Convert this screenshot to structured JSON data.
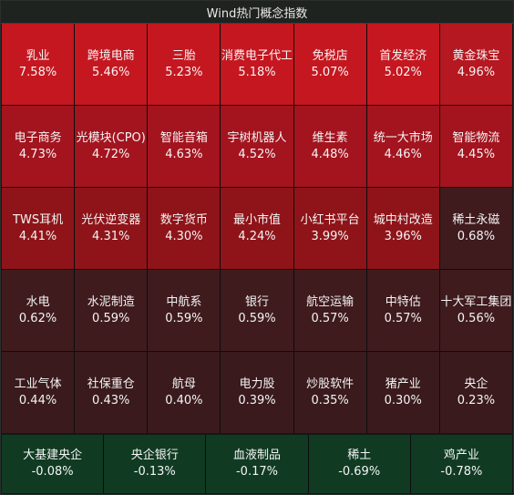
{
  "title": "Wind热门概念指数",
  "colors": {
    "strong_red": "#c51720",
    "mid_red": "#b51820",
    "red": "#a3141f",
    "deep_red": "#8e1419",
    "dark_red": "#3f1b1e",
    "darker_red": "#3a1a1d",
    "green": "#103b22"
  },
  "rows": [
    [
      {
        "name": "乳业",
        "value": "7.58%",
        "tone": "strong_red"
      },
      {
        "name": "跨境电商",
        "value": "5.46%",
        "tone": "strong_red"
      },
      {
        "name": "三胎",
        "value": "5.23%",
        "tone": "strong_red"
      },
      {
        "name": "消费电子代工",
        "value": "5.18%",
        "tone": "strong_red"
      },
      {
        "name": "免税店",
        "value": "5.07%",
        "tone": "strong_red"
      },
      {
        "name": "首发经济",
        "value": "5.02%",
        "tone": "strong_red"
      },
      {
        "name": "黄金珠宝",
        "value": "4.96%",
        "tone": "mid_red"
      }
    ],
    [
      {
        "name": "电子商务",
        "value": "4.73%",
        "tone": "red"
      },
      {
        "name": "光模块(CPO)",
        "value": "4.72%",
        "tone": "red"
      },
      {
        "name": "智能音箱",
        "value": "4.63%",
        "tone": "red"
      },
      {
        "name": "宇树机器人",
        "value": "4.52%",
        "tone": "red"
      },
      {
        "name": "维生素",
        "value": "4.48%",
        "tone": "red"
      },
      {
        "name": "统一大市场",
        "value": "4.46%",
        "tone": "red"
      },
      {
        "name": "智能物流",
        "value": "4.45%",
        "tone": "red"
      }
    ],
    [
      {
        "name": "TWS耳机",
        "value": "4.41%",
        "tone": "deep_red"
      },
      {
        "name": "光伏逆变器",
        "value": "4.31%",
        "tone": "deep_red"
      },
      {
        "name": "数字货币",
        "value": "4.30%",
        "tone": "deep_red"
      },
      {
        "name": "最小市值",
        "value": "4.24%",
        "tone": "deep_red"
      },
      {
        "name": "小红书平台",
        "value": "3.99%",
        "tone": "deep_red"
      },
      {
        "name": "城中村改造",
        "value": "3.96%",
        "tone": "deep_red"
      },
      {
        "name": "稀土永磁",
        "value": "0.68%",
        "tone": "dark_red"
      }
    ],
    [
      {
        "name": "水电",
        "value": "0.62%",
        "tone": "dark_red"
      },
      {
        "name": "水泥制造",
        "value": "0.59%",
        "tone": "dark_red"
      },
      {
        "name": "中航系",
        "value": "0.59%",
        "tone": "dark_red"
      },
      {
        "name": "银行",
        "value": "0.59%",
        "tone": "dark_red"
      },
      {
        "name": "航空运输",
        "value": "0.57%",
        "tone": "dark_red"
      },
      {
        "name": "中特估",
        "value": "0.57%",
        "tone": "dark_red"
      },
      {
        "name": "十大军工集团",
        "value": "0.56%",
        "tone": "dark_red"
      }
    ],
    [
      {
        "name": "工业气体",
        "value": "0.44%",
        "tone": "darker_red"
      },
      {
        "name": "社保重仓",
        "value": "0.43%",
        "tone": "darker_red"
      },
      {
        "name": "航母",
        "value": "0.40%",
        "tone": "darker_red"
      },
      {
        "name": "电力股",
        "value": "0.39%",
        "tone": "darker_red"
      },
      {
        "name": "炒股软件",
        "value": "0.35%",
        "tone": "darker_red"
      },
      {
        "name": "猪产业",
        "value": "0.30%",
        "tone": "darker_red"
      },
      {
        "name": "央企",
        "value": "0.23%",
        "tone": "darker_red"
      }
    ]
  ],
  "bottom": [
    {
      "name": "大基建央企",
      "value": "-0.08%",
      "tone": "green"
    },
    {
      "name": "央企银行",
      "value": "-0.13%",
      "tone": "green"
    },
    {
      "name": "血液制品",
      "value": "-0.17%",
      "tone": "green"
    },
    {
      "name": "稀土",
      "value": "-0.69%",
      "tone": "green"
    },
    {
      "name": "鸡产业",
      "value": "-0.78%",
      "tone": "green"
    }
  ]
}
